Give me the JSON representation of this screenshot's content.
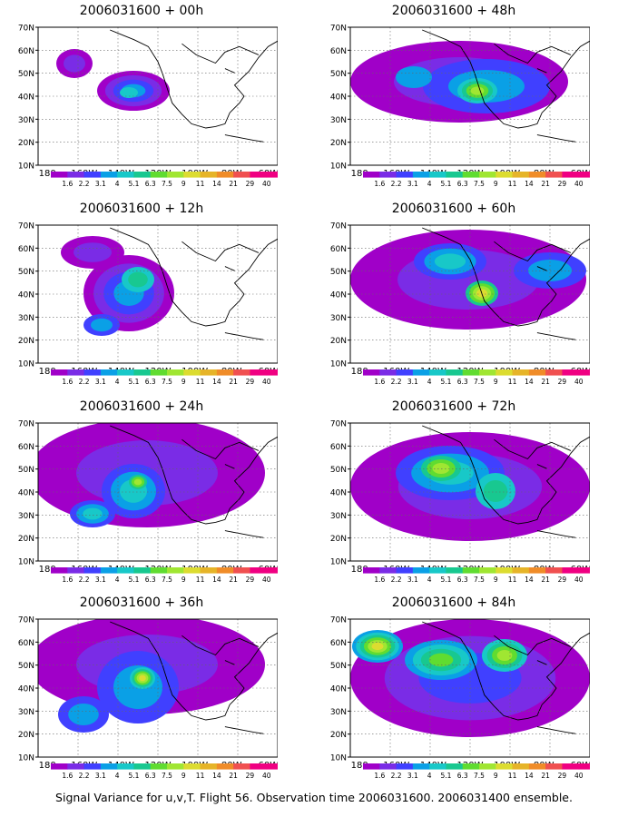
{
  "lat_labels": [
    "70N",
    "60N",
    "50N",
    "40N",
    "30N",
    "20N",
    "10N"
  ],
  "lon_labels": [
    "180",
    "160W",
    "140W",
    "120W",
    "100W",
    "80W",
    "60W"
  ],
  "colorbar": {
    "labels": [
      "1.6",
      "2.2",
      "3.1",
      "4",
      "5.1",
      "6.3",
      "7.5",
      "9",
      "11",
      "14",
      "21",
      "29",
      "40"
    ],
    "colors": [
      "#a000c8",
      "#7a2ce6",
      "#4040ff",
      "#0aa0e6",
      "#18c8c8",
      "#18c890",
      "#60dc30",
      "#a0e632",
      "#dcdc30",
      "#e6b428",
      "#f08c28",
      "#f05050",
      "#f00082"
    ]
  },
  "panels": [
    {
      "title": "2006031600 + 00h"
    },
    {
      "title": "2006031600 + 48h"
    },
    {
      "title": "2006031600 + 12h"
    },
    {
      "title": "2006031600 + 60h"
    },
    {
      "title": "2006031600 + 24h"
    },
    {
      "title": "2006031600 + 72h"
    },
    {
      "title": "2006031600 + 36h"
    },
    {
      "title": "2006031600 + 84h"
    }
  ],
  "footer": "Signal Variance for u,v,T. Flight 56. Observation time 2006031600. 2006031400 ensemble."
}
